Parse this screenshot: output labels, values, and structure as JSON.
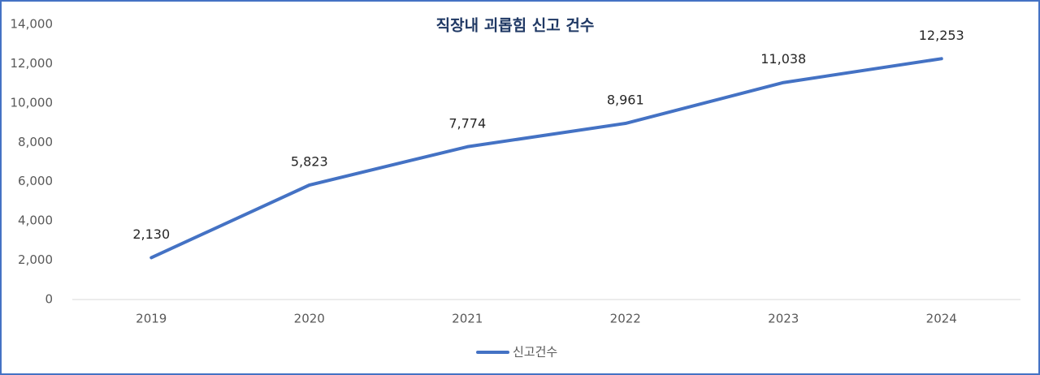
{
  "chart_data": {
    "type": "line",
    "title": "직장내 괴롭힘 신고 건수",
    "categories": [
      "2019",
      "2020",
      "2021",
      "2022",
      "2023",
      "2024"
    ],
    "series": [
      {
        "name": "신고건수",
        "color": "#4472c4",
        "values": [
          2130,
          5823,
          7774,
          8961,
          11038,
          12253
        ],
        "value_labels": [
          "2,130",
          "5,823",
          "7,774",
          "8,961",
          "11,038",
          "12,253"
        ]
      }
    ],
    "ylim": [
      0,
      14000
    ],
    "yticks": [
      0,
      {
        "value": 2000,
        "label": "2,000"
      },
      {
        "value": 4000,
        "label": "4,000"
      },
      {
        "value": 6000,
        "label": "6,000"
      },
      {
        "value": 8000,
        "label": "8,000"
      },
      {
        "value": 10000,
        "label": "10,000"
      },
      {
        "value": 12000,
        "label": "12,000"
      },
      {
        "value": 14000,
        "label": "14,000"
      }
    ],
    "grid": false,
    "legend": "bottom"
  }
}
